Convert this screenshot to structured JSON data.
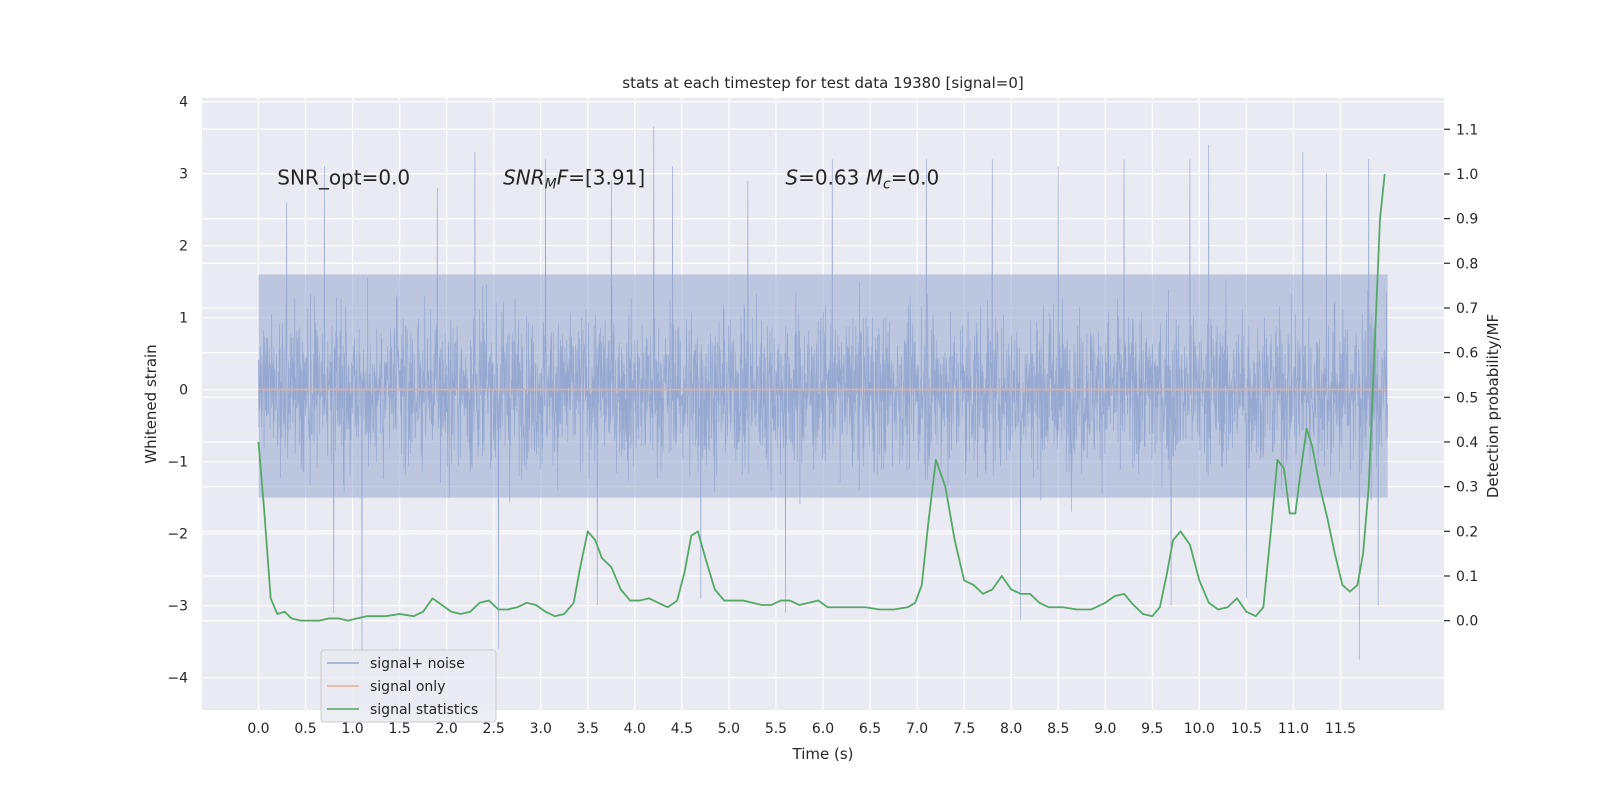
{
  "chart_data": {
    "type": "line",
    "title": "stats at each timestep for test data 19380 [signal=0]",
    "xlabel": "Time (s)",
    "ylabel": "Whitened strain",
    "y2label": "Detection probability/MF",
    "xlim": [
      -0.6,
      12.6
    ],
    "ylim": [
      -4.45,
      4.05
    ],
    "y2lim": [
      -0.2,
      1.17
    ],
    "x_ticks": [
      0.0,
      0.5,
      1.0,
      1.5,
      2.0,
      2.5,
      3.0,
      3.5,
      4.0,
      4.5,
      5.0,
      5.5,
      6.0,
      6.5,
      7.0,
      7.5,
      8.0,
      8.5,
      9.0,
      9.5,
      10.0,
      10.5,
      11.0,
      11.5
    ],
    "x_tick_labels": [
      "0.0",
      "0.5",
      "1.0",
      "1.5",
      "2.0",
      "2.5",
      "3.0",
      "3.5",
      "4.0",
      "4.5",
      "5.0",
      "5.5",
      "6.0",
      "6.5",
      "7.0",
      "7.5",
      "8.0",
      "8.5",
      "9.0",
      "9.5",
      "10.0",
      "10.5",
      "11.0",
      "11.5"
    ],
    "y_ticks": [
      -4,
      -3,
      -2,
      -1,
      0,
      1,
      2,
      3,
      4
    ],
    "y_tick_labels": [
      "−4",
      "−3",
      "−2",
      "−1",
      "0",
      "1",
      "2",
      "3",
      "4"
    ],
    "y2_ticks": [
      0.0,
      0.1,
      0.2,
      0.3,
      0.4,
      0.5,
      0.6,
      0.7,
      0.8,
      0.9,
      1.0,
      1.1
    ],
    "y2_tick_labels": [
      "0.0",
      "0.1",
      "0.2",
      "0.3",
      "0.4",
      "0.5",
      "0.6",
      "0.7",
      "0.8",
      "0.9",
      "1.0",
      "1.1"
    ],
    "grid": true,
    "legend_position": "lower-left",
    "annotations": [
      {
        "text": "SNR_opt=0.0",
        "x": 0.2,
        "y": 2.85
      },
      {
        "text": "SNR_MF=[3.91]",
        "x": 2.6,
        "y": 2.85
      },
      {
        "text": "S=0.63   M_c=0.0",
        "x": 5.6,
        "y": 2.85
      }
    ],
    "annotation_display": [
      {
        "parts": [
          {
            "t": "SNR_opt=0.0",
            "style": "normal",
            "sub": false
          }
        ]
      },
      {
        "parts": [
          {
            "t": "SNR",
            "style": "italic",
            "sub": false
          },
          {
            "t": "M",
            "style": "italic",
            "sub": true
          },
          {
            "t": "F",
            "style": "italic",
            "sub": false
          },
          {
            "t": "=[3.91]",
            "style": "normal",
            "sub": false
          }
        ]
      },
      {
        "parts": [
          {
            "t": "S",
            "style": "italic",
            "sub": false
          },
          {
            "t": "=0.63   ",
            "style": "normal",
            "sub": false
          },
          {
            "t": "M",
            "style": "italic",
            "sub": false
          },
          {
            "t": "c",
            "style": "italic",
            "sub": true
          },
          {
            "t": "=0.0",
            "style": "normal",
            "sub": false
          }
        ]
      }
    ],
    "series": [
      {
        "name": "signal+ noise",
        "color": "#95a7cf",
        "axis": "left",
        "style": "dense-noise",
        "t_range": [
          0.0,
          12.0
        ],
        "band_typical": [
          -1.5,
          1.6
        ],
        "spike_maxima": [
          {
            "x": 0.3,
            "y": 2.6
          },
          {
            "x": 0.7,
            "y": 3.1
          },
          {
            "x": 1.1,
            "y": 2.9
          },
          {
            "x": 1.9,
            "y": 2.8
          },
          {
            "x": 2.3,
            "y": 3.3
          },
          {
            "x": 3.05,
            "y": 3.2
          },
          {
            "x": 3.75,
            "y": 2.9
          },
          {
            "x": 4.2,
            "y": 3.65
          },
          {
            "x": 4.4,
            "y": 3.1
          },
          {
            "x": 5.2,
            "y": 2.9
          },
          {
            "x": 6.1,
            "y": 3.2
          },
          {
            "x": 7.1,
            "y": 3.2
          },
          {
            "x": 7.8,
            "y": 3.2
          },
          {
            "x": 8.5,
            "y": 3.1
          },
          {
            "x": 9.2,
            "y": 3.2
          },
          {
            "x": 9.9,
            "y": 3.2
          },
          {
            "x": 10.1,
            "y": 3.4
          },
          {
            "x": 11.1,
            "y": 3.3
          },
          {
            "x": 11.35,
            "y": 3.0
          },
          {
            "x": 11.8,
            "y": 3.2
          }
        ],
        "spike_minima": [
          {
            "x": 0.8,
            "y": -3.1
          },
          {
            "x": 1.1,
            "y": -3.8
          },
          {
            "x": 2.55,
            "y": -3.6
          },
          {
            "x": 3.6,
            "y": -3.0
          },
          {
            "x": 4.7,
            "y": -2.9
          },
          {
            "x": 5.6,
            "y": -3.1
          },
          {
            "x": 8.1,
            "y": -3.2
          },
          {
            "x": 9.7,
            "y": -3.0
          },
          {
            "x": 10.5,
            "y": -2.9
          },
          {
            "x": 11.7,
            "y": -3.75
          },
          {
            "x": 11.9,
            "y": -3.0
          }
        ]
      },
      {
        "name": "signal only",
        "color": "#e5ae97",
        "axis": "left",
        "x": [
          0.0,
          12.0
        ],
        "y": [
          0.0,
          0.0
        ]
      },
      {
        "name": "signal statistics",
        "color": "#55a868",
        "axis": "right",
        "x": [
          0.0,
          0.06,
          0.13,
          0.2,
          0.28,
          0.35,
          0.45,
          0.55,
          0.65,
          0.75,
          0.85,
          0.95,
          1.05,
          1.15,
          1.25,
          1.35,
          1.5,
          1.65,
          1.75,
          1.85,
          1.95,
          2.05,
          2.15,
          2.25,
          2.35,
          2.45,
          2.55,
          2.65,
          2.75,
          2.85,
          2.95,
          3.05,
          3.15,
          3.25,
          3.35,
          3.42,
          3.5,
          3.58,
          3.65,
          3.75,
          3.85,
          3.95,
          4.05,
          4.15,
          4.25,
          4.35,
          4.45,
          4.53,
          4.6,
          4.67,
          4.75,
          4.85,
          4.95,
          5.05,
          5.15,
          5.25,
          5.35,
          5.45,
          5.55,
          5.65,
          5.75,
          5.85,
          5.95,
          6.05,
          6.15,
          6.3,
          6.45,
          6.6,
          6.75,
          6.9,
          6.98,
          7.05,
          7.12,
          7.2,
          7.3,
          7.4,
          7.5,
          7.6,
          7.7,
          7.8,
          7.9,
          8.0,
          8.1,
          8.2,
          8.3,
          8.4,
          8.55,
          8.7,
          8.85,
          9.0,
          9.1,
          9.2,
          9.3,
          9.4,
          9.5,
          9.58,
          9.65,
          9.72,
          9.8,
          9.9,
          10.0,
          10.1,
          10.2,
          10.3,
          10.4,
          10.5,
          10.6,
          10.68,
          10.76,
          10.83,
          10.9,
          10.96,
          11.02,
          11.08,
          11.14,
          11.2,
          11.28,
          11.36,
          11.44,
          11.52,
          11.6,
          11.68,
          11.74,
          11.8,
          11.86,
          11.92,
          11.97
        ],
        "y": [
          0.4,
          0.25,
          0.05,
          0.015,
          0.02,
          0.005,
          0.0,
          0.0,
          0.0,
          0.005,
          0.005,
          0.0,
          0.005,
          0.01,
          0.01,
          0.01,
          0.015,
          0.01,
          0.02,
          0.05,
          0.035,
          0.02,
          0.015,
          0.02,
          0.04,
          0.045,
          0.025,
          0.025,
          0.03,
          0.04,
          0.035,
          0.02,
          0.01,
          0.015,
          0.04,
          0.12,
          0.2,
          0.18,
          0.14,
          0.12,
          0.07,
          0.045,
          0.045,
          0.05,
          0.04,
          0.03,
          0.045,
          0.11,
          0.19,
          0.2,
          0.14,
          0.07,
          0.045,
          0.045,
          0.045,
          0.04,
          0.035,
          0.035,
          0.045,
          0.045,
          0.035,
          0.04,
          0.045,
          0.03,
          0.03,
          0.03,
          0.03,
          0.025,
          0.025,
          0.03,
          0.04,
          0.08,
          0.22,
          0.36,
          0.3,
          0.18,
          0.09,
          0.08,
          0.06,
          0.07,
          0.1,
          0.07,
          0.06,
          0.06,
          0.04,
          0.03,
          0.03,
          0.025,
          0.025,
          0.04,
          0.055,
          0.06,
          0.035,
          0.015,
          0.01,
          0.03,
          0.1,
          0.18,
          0.2,
          0.17,
          0.09,
          0.04,
          0.025,
          0.03,
          0.05,
          0.02,
          0.01,
          0.03,
          0.2,
          0.36,
          0.34,
          0.24,
          0.24,
          0.34,
          0.43,
          0.39,
          0.3,
          0.23,
          0.15,
          0.08,
          0.065,
          0.08,
          0.15,
          0.3,
          0.6,
          0.9,
          1.0
        ]
      }
    ]
  }
}
